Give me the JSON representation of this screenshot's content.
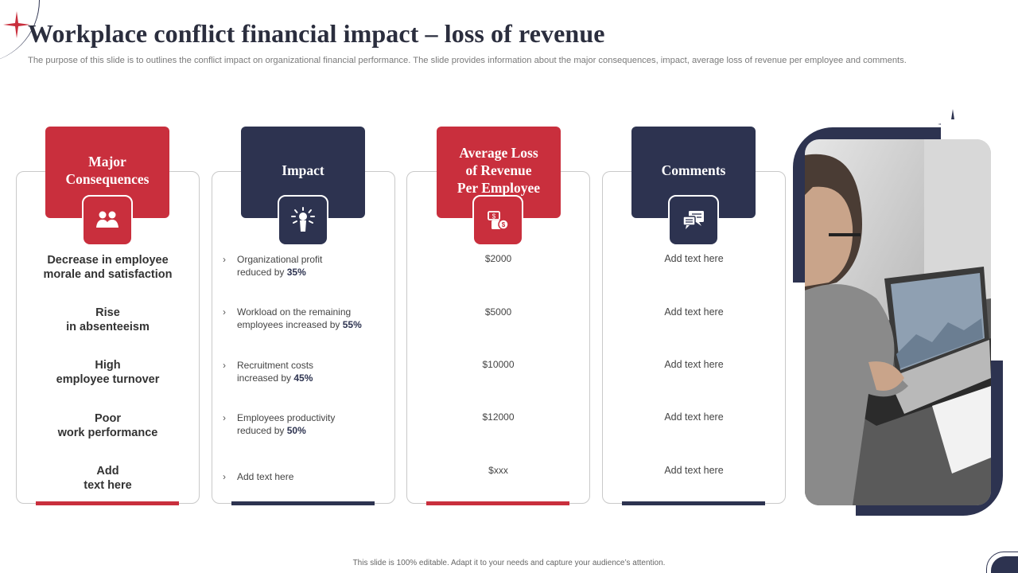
{
  "slide": {
    "title": "Workplace conflict financial impact – loss of revenue",
    "subtitle": "The purpose of this slide is to outlines the conflict impact on organizational financial performance. The slide provides information about the major consequences, impact, average loss of revenue per employee and comments.",
    "footer": "This slide is 100% editable. Adapt it to your needs and capture your audience’s attention."
  },
  "colors": {
    "red": "#c92f3d",
    "navy": "#2d3350"
  },
  "columns": {
    "consequences": {
      "heading_line1": "Major",
      "heading_line2": "Consequences",
      "icon": "people-icon",
      "items": [
        {
          "line1": "Decrease in employee",
          "line2": "morale and satisfaction"
        },
        {
          "line1": "Rise",
          "line2": "in absenteeism"
        },
        {
          "line1": "High",
          "line2": "employee turnover"
        },
        {
          "line1": "Poor",
          "line2": "work performance"
        },
        {
          "line1": "Add",
          "line2": "text here"
        }
      ]
    },
    "impact": {
      "heading": "Impact",
      "icon": "impact-burst-icon",
      "items": [
        {
          "text": "Organizational  profit",
          "text2": "reduced by ",
          "value": "35%"
        },
        {
          "text": "Workload on the remaining",
          "text2": "employees increased by ",
          "value": "55%"
        },
        {
          "text": "Recruitment  costs",
          "text2": "increased by ",
          "value": "45%"
        },
        {
          "text": "Employees productivity",
          "text2": "reduced by ",
          "value": "50%"
        },
        {
          "text": "Add text here",
          "text2": "",
          "value": ""
        }
      ]
    },
    "loss": {
      "heading_line1": "Average Loss",
      "heading_line2": "of Revenue",
      "heading_line3": "Per Employee",
      "icon": "money-loss-icon",
      "items": [
        "$2000",
        "$5000",
        "$10000",
        "$12000",
        "$xxx"
      ]
    },
    "comments": {
      "heading": "Comments",
      "icon": "chat-icon",
      "items": [
        "Add text here",
        "Add text here",
        "Add text here",
        "Add text here",
        "Add text here"
      ]
    }
  }
}
